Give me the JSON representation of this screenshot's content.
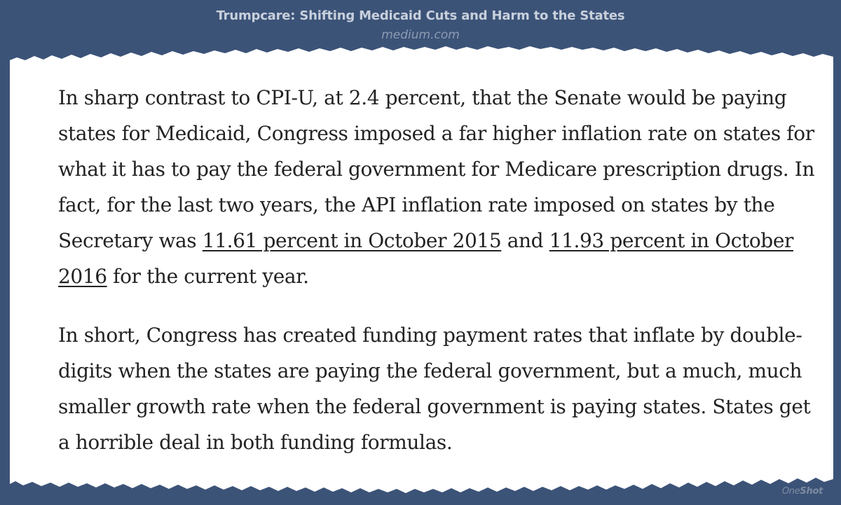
{
  "header": {
    "title": "Trumpcare: Shifting Medicaid Cuts and Harm to the States",
    "source": "medium.com"
  },
  "article": {
    "p1_a": "In sharp contrast to CPI-U, at 2.4 percent, that the Senate would be paying states for Medicaid, Congress imposed a far higher inflation rate on states for what it has to pay the federal government for Medicare prescription drugs. In fact, for the last two years, the API inflation rate imposed on states by the Secretary was ",
    "p1_link1": "11.61 percent in October 2015",
    "p1_b": " and ",
    "p1_link2": "11.93 percent in October 2016",
    "p1_c": " for the current year.",
    "p2": "In short, Congress has created funding payment rates that inflate by double-digits when the states are paying the federal government, but a much, much smaller growth rate when the federal government is paying states. States get a horrible deal in both funding formulas."
  },
  "watermark": {
    "prefix": "One",
    "suffix": "Shot"
  },
  "colors": {
    "background": "#3c5378",
    "paper": "#ffffff",
    "text": "#222222"
  }
}
